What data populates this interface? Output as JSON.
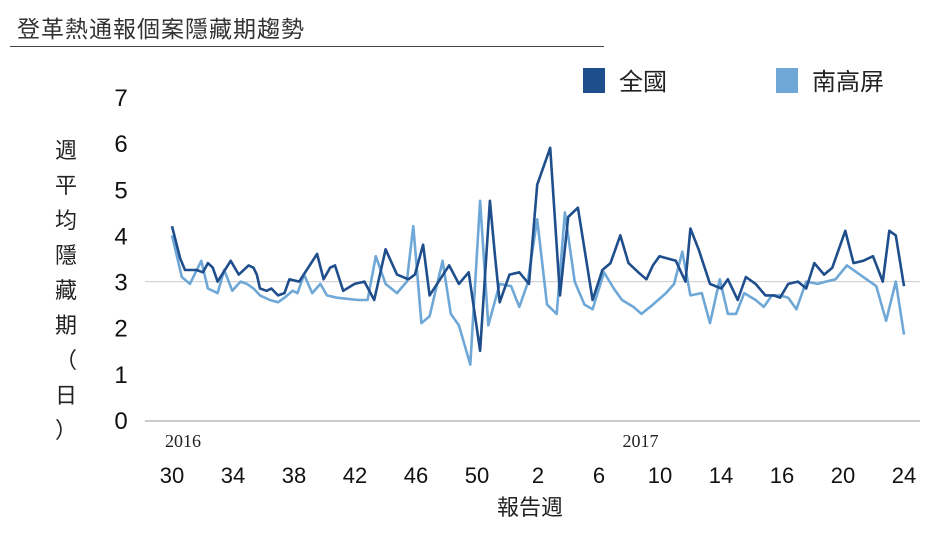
{
  "title": "登革熱通報個案隱藏期趨勢",
  "chart_data": {
    "type": "line",
    "title": "登革熱通報個案隱藏期趨勢",
    "xlabel": "報告週",
    "ylabel": "週平均隱藏期（日）",
    "ylabel_chars": [
      "週",
      "平",
      "均",
      "隱",
      "藏",
      "期",
      "（",
      "日",
      "）"
    ],
    "ylim": [
      0,
      7
    ],
    "yticks": [
      0,
      1,
      2,
      3,
      4,
      5,
      6,
      7
    ],
    "reference_line": 3,
    "legend_position": "top-right",
    "year_labels": [
      {
        "text": "2016",
        "at_index": 0
      },
      {
        "text": "2017",
        "at_index": 30
      }
    ],
    "x_tick_labels": [
      {
        "label": "30",
        "index": 0
      },
      {
        "label": "34",
        "index": 4
      },
      {
        "label": "38",
        "index": 8
      },
      {
        "label": "42",
        "index": 12
      },
      {
        "label": "46",
        "index": 16
      },
      {
        "label": "50",
        "index": 20
      },
      {
        "label": "2",
        "index": 24
      },
      {
        "label": "6",
        "index": 28
      },
      {
        "label": "10",
        "index": 32
      },
      {
        "label": "14",
        "index": 36
      },
      {
        "label": "16",
        "index": 40
      },
      {
        "label": "20",
        "index": 44
      },
      {
        "label": "24",
        "index": 48
      }
    ],
    "x_count": 50,
    "series": [
      {
        "name": "全國",
        "color": "#1f4e8c",
        "points": [
          [
            0.0,
            4.2
          ],
          [
            0.5,
            3.5
          ],
          [
            0.8,
            3.25
          ],
          [
            1.5,
            3.25
          ],
          [
            1.9,
            3.2
          ],
          [
            2.2,
            3.4
          ],
          [
            2.5,
            3.3
          ],
          [
            2.8,
            3.0
          ],
          [
            3.6,
            3.45
          ],
          [
            4.1,
            3.15
          ],
          [
            4.7,
            3.35
          ],
          [
            5.0,
            3.3
          ],
          [
            5.2,
            3.15
          ],
          [
            5.4,
            2.85
          ],
          [
            5.8,
            2.8
          ],
          [
            6.1,
            2.85
          ],
          [
            6.5,
            2.7
          ],
          [
            6.9,
            2.75
          ],
          [
            7.2,
            3.05
          ],
          [
            7.8,
            3.0
          ],
          [
            8.9,
            3.6
          ],
          [
            9.3,
            3.05
          ],
          [
            9.7,
            3.3
          ],
          [
            10.0,
            3.35
          ],
          [
            10.5,
            2.8
          ],
          [
            11.2,
            2.95
          ],
          [
            11.8,
            3.0
          ],
          [
            12.4,
            2.6
          ],
          [
            13.1,
            3.7
          ],
          [
            13.8,
            3.15
          ],
          [
            14.5,
            3.05
          ],
          [
            14.9,
            3.15
          ],
          [
            15.4,
            3.8
          ],
          [
            15.8,
            2.7
          ],
          [
            17.0,
            3.35
          ],
          [
            17.6,
            2.95
          ],
          [
            18.2,
            3.2
          ],
          [
            18.9,
            1.5
          ],
          [
            19.5,
            4.75
          ],
          [
            19.8,
            3.6
          ],
          [
            20.1,
            2.55
          ],
          [
            20.7,
            3.15
          ],
          [
            21.3,
            3.2
          ],
          [
            21.9,
            2.95
          ],
          [
            22.4,
            5.1
          ],
          [
            23.2,
            5.9
          ],
          [
            23.8,
            2.7
          ],
          [
            24.3,
            4.4
          ],
          [
            24.9,
            4.6
          ],
          [
            25.8,
            2.6
          ],
          [
            26.4,
            3.25
          ],
          [
            26.9,
            3.4
          ],
          [
            27.5,
            4.0
          ],
          [
            28.0,
            3.4
          ],
          [
            28.6,
            3.2
          ],
          [
            29.1,
            3.05
          ],
          [
            29.5,
            3.35
          ],
          [
            29.9,
            3.55
          ],
          [
            30.4,
            3.5
          ],
          [
            30.9,
            3.45
          ],
          [
            31.5,
            3.0
          ],
          [
            31.8,
            4.15
          ],
          [
            32.3,
            3.7
          ],
          [
            33.0,
            2.95
          ],
          [
            33.7,
            2.85
          ],
          [
            34.1,
            3.05
          ],
          [
            34.7,
            2.6
          ],
          [
            35.2,
            3.1
          ],
          [
            35.8,
            2.95
          ],
          [
            36.4,
            2.7
          ],
          [
            36.9,
            2.7
          ],
          [
            37.3,
            2.65
          ],
          [
            37.8,
            2.95
          ],
          [
            38.4,
            3.0
          ],
          [
            38.9,
            2.85
          ],
          [
            39.4,
            3.4
          ],
          [
            40.0,
            3.15
          ],
          [
            40.5,
            3.3
          ],
          [
            41.3,
            4.1
          ],
          [
            41.8,
            3.4
          ],
          [
            42.4,
            3.45
          ],
          [
            43.0,
            3.55
          ],
          [
            43.6,
            3.0
          ],
          [
            44.0,
            4.1
          ],
          [
            44.4,
            4.0
          ],
          [
            44.9,
            2.9
          ]
        ]
      },
      {
        "name": "南高屏",
        "color": "#6fa8d6",
        "points": [
          [
            0.0,
            4.0
          ],
          [
            0.6,
            3.1
          ],
          [
            1.1,
            2.95
          ],
          [
            1.8,
            3.45
          ],
          [
            2.2,
            2.85
          ],
          [
            2.8,
            2.75
          ],
          [
            3.2,
            3.25
          ],
          [
            3.7,
            2.8
          ],
          [
            4.2,
            3.0
          ],
          [
            4.6,
            2.95
          ],
          [
            5.0,
            2.85
          ],
          [
            5.4,
            2.7
          ],
          [
            6.0,
            2.6
          ],
          [
            6.5,
            2.55
          ],
          [
            6.9,
            2.65
          ],
          [
            7.4,
            2.8
          ],
          [
            7.7,
            2.75
          ],
          [
            8.1,
            3.15
          ],
          [
            8.6,
            2.75
          ],
          [
            9.1,
            2.95
          ],
          [
            9.5,
            2.7
          ],
          [
            10.1,
            2.65
          ],
          [
            11.4,
            2.6
          ],
          [
            12.0,
            2.6
          ],
          [
            12.5,
            3.55
          ],
          [
            13.1,
            2.95
          ],
          [
            13.8,
            2.75
          ],
          [
            14.4,
            3.0
          ],
          [
            14.8,
            4.2
          ],
          [
            15.3,
            2.1
          ],
          [
            15.8,
            2.25
          ],
          [
            16.6,
            3.45
          ],
          [
            17.1,
            2.3
          ],
          [
            17.6,
            2.05
          ],
          [
            18.3,
            1.2
          ],
          [
            18.9,
            4.75
          ],
          [
            19.4,
            2.05
          ],
          [
            20.1,
            2.95
          ],
          [
            20.8,
            2.9
          ],
          [
            21.3,
            2.45
          ],
          [
            21.8,
            2.95
          ],
          [
            22.4,
            4.35
          ],
          [
            23.0,
            2.5
          ],
          [
            23.6,
            2.3
          ],
          [
            24.1,
            4.5
          ],
          [
            24.7,
            3.0
          ],
          [
            25.3,
            2.5
          ],
          [
            25.8,
            2.4
          ],
          [
            26.5,
            3.2
          ],
          [
            27.1,
            2.85
          ],
          [
            27.6,
            2.6
          ],
          [
            28.3,
            2.45
          ],
          [
            28.8,
            2.3
          ],
          [
            29.5,
            2.5
          ],
          [
            30.3,
            2.75
          ],
          [
            30.8,
            2.95
          ],
          [
            31.3,
            3.65
          ],
          [
            31.8,
            2.7
          ],
          [
            32.5,
            2.75
          ],
          [
            33.0,
            2.1
          ],
          [
            33.6,
            3.05
          ],
          [
            34.1,
            2.3
          ],
          [
            34.6,
            2.3
          ],
          [
            35.1,
            2.75
          ],
          [
            35.8,
            2.6
          ],
          [
            36.3,
            2.45
          ],
          [
            36.8,
            2.7
          ],
          [
            37.3,
            2.7
          ],
          [
            37.8,
            2.65
          ],
          [
            38.3,
            2.4
          ],
          [
            38.9,
            3.0
          ],
          [
            39.6,
            2.95
          ],
          [
            40.1,
            3.0
          ],
          [
            40.7,
            3.05
          ],
          [
            41.4,
            3.35
          ],
          [
            42.0,
            3.2
          ],
          [
            42.6,
            3.05
          ],
          [
            43.2,
            2.9
          ],
          [
            43.8,
            2.15
          ],
          [
            44.4,
            3.0
          ],
          [
            44.9,
            1.85
          ]
        ]
      }
    ]
  }
}
